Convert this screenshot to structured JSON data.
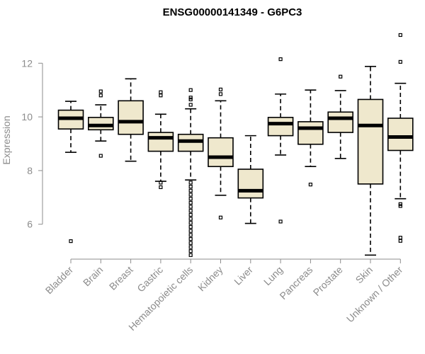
{
  "colors": {
    "box_fill": "#efe8cd",
    "box_stroke": "#000000",
    "axis": "#8c8c8c",
    "median": "#000000"
  },
  "chart_data": {
    "type": "boxplot",
    "title": "ENSG00000141349 - G6PC3",
    "xlabel": "",
    "ylabel": "Expression",
    "ylim": [
      4.7,
      13.3
    ],
    "yticks": [
      6,
      8,
      10,
      12
    ],
    "categories": [
      "Bladder",
      "Brain",
      "Breast",
      "Gastric",
      "Hematopoietic cells",
      "Kidney",
      "Liver",
      "Lung",
      "Pancreas",
      "Prostate",
      "Skin",
      "Unknown / Other"
    ],
    "boxes": [
      {
        "name": "Bladder",
        "whisker_low": 8.68,
        "q1": 9.55,
        "median": 9.95,
        "q3": 10.25,
        "whisker_high": 10.58,
        "outliers": [
          5.37
        ]
      },
      {
        "name": "Brain",
        "whisker_low": 9.1,
        "q1": 9.52,
        "median": 9.68,
        "q3": 9.98,
        "whisker_high": 10.45,
        "outliers": [
          8.55,
          10.8,
          10.95
        ]
      },
      {
        "name": "Breast",
        "whisker_low": 8.35,
        "q1": 9.35,
        "median": 9.82,
        "q3": 10.6,
        "whisker_high": 11.42,
        "outliers": []
      },
      {
        "name": "Gastric",
        "whisker_low": 7.6,
        "q1": 8.72,
        "median": 9.22,
        "q3": 9.42,
        "whisker_high": 10.1,
        "outliers": [
          7.38,
          7.55,
          10.8,
          10.92
        ]
      },
      {
        "name": "Hematopoietic cells",
        "whisker_low": 7.65,
        "q1": 8.72,
        "median": 9.1,
        "q3": 9.35,
        "whisker_high": 10.3,
        "outliers": [
          4.85,
          5.0,
          5.15,
          5.3,
          5.45,
          5.6,
          5.75,
          5.9,
          6.05,
          6.2,
          6.35,
          6.5,
          6.65,
          6.8,
          6.95,
          7.1,
          7.25,
          7.4,
          7.55,
          10.45,
          10.65,
          10.72,
          11.0
        ]
      },
      {
        "name": "Kidney",
        "whisker_low": 7.08,
        "q1": 8.15,
        "median": 8.5,
        "q3": 9.22,
        "whisker_high": 10.6,
        "outliers": [
          6.25,
          10.85,
          11.02
        ]
      },
      {
        "name": "Liver",
        "whisker_low": 6.03,
        "q1": 6.98,
        "median": 7.25,
        "q3": 8.05,
        "whisker_high": 9.3,
        "outliers": []
      },
      {
        "name": "Lung",
        "whisker_low": 8.58,
        "q1": 9.3,
        "median": 9.75,
        "q3": 9.98,
        "whisker_high": 10.85,
        "outliers": [
          6.1,
          12.15
        ]
      },
      {
        "name": "Pancreas",
        "whisker_low": 8.15,
        "q1": 8.98,
        "median": 9.58,
        "q3": 9.82,
        "whisker_high": 11.0,
        "outliers": [
          7.48
        ]
      },
      {
        "name": "Prostate",
        "whisker_low": 8.45,
        "q1": 9.42,
        "median": 9.95,
        "q3": 10.18,
        "whisker_high": 10.98,
        "outliers": [
          11.5
        ]
      },
      {
        "name": "Skin",
        "whisker_low": 4.85,
        "q1": 7.5,
        "median": 9.68,
        "q3": 10.65,
        "whisker_high": 11.88,
        "outliers": []
      },
      {
        "name": "Unknown / Other",
        "whisker_low": 6.95,
        "q1": 8.75,
        "median": 9.25,
        "q3": 9.95,
        "whisker_high": 11.25,
        "outliers": [
          5.38,
          5.5,
          6.68,
          6.75,
          12.05,
          13.05
        ]
      }
    ]
  }
}
